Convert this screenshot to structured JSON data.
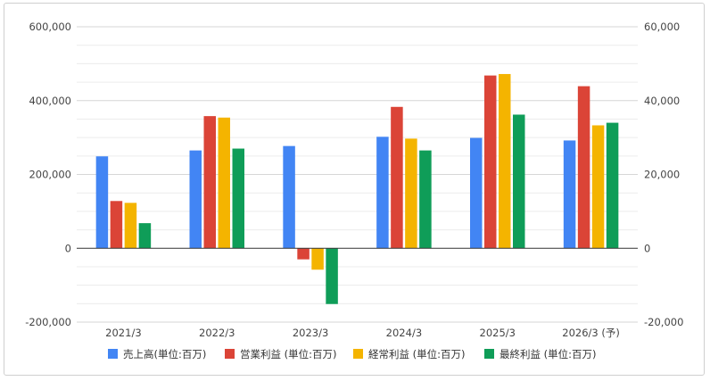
{
  "chart_data": {
    "type": "bar",
    "categories": [
      "2021/3",
      "2022/3",
      "2023/3",
      "2024/3",
      "2025/3",
      "2026/3 (予)"
    ],
    "series": [
      {
        "name": "売上高(単位:百万)",
        "axis": "left",
        "color": "#4285f4",
        "values": [
          249000,
          265000,
          277000,
          302000,
          299000,
          292000
        ]
      },
      {
        "name": "営業利益 (単位:百万)",
        "axis": "right",
        "color": "#db4437",
        "values": [
          12800,
          35800,
          -3000,
          38300,
          46800,
          43900
        ]
      },
      {
        "name": "経常利益 (単位:百万)",
        "axis": "right",
        "color": "#f4b400",
        "values": [
          12300,
          35400,
          -5800,
          29700,
          47200,
          33300
        ]
      },
      {
        "name": "最終利益 (単位:百万)",
        "axis": "right",
        "color": "#0f9d58",
        "values": [
          6800,
          27000,
          -15100,
          26500,
          36200,
          34000
        ]
      }
    ],
    "left_axis": {
      "ylim": [
        -200000,
        600000
      ],
      "ticks": [
        -200000,
        0,
        200000,
        400000,
        600000
      ],
      "tick_labels": [
        "-200,000",
        "0",
        "200,000",
        "400,000",
        "600,000"
      ]
    },
    "right_axis": {
      "ylim": [
        -20000,
        60000
      ],
      "ticks": [
        -20000,
        0,
        20000,
        40000,
        60000
      ],
      "tick_labels": [
        "-20,000",
        "0",
        "20,000",
        "40,000",
        "60,000"
      ]
    },
    "grid": true,
    "legend": "bottom",
    "title": "",
    "xlabel": "",
    "ylabel": ""
  }
}
